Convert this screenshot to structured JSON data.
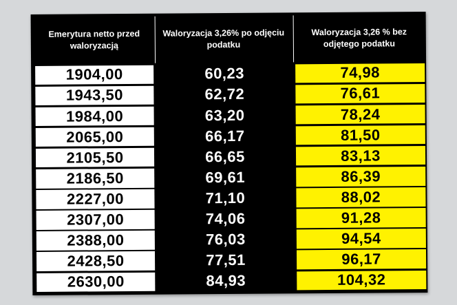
{
  "table": {
    "headers": [
      "Emerytura netto przed waloryzacją",
      "Waloryzacja 3,26% po odjęciu podatku",
      "Waloryzacja 3,26 % bez odjętego podatku"
    ],
    "rows": [
      [
        "1904,00",
        "60,23",
        "74,98"
      ],
      [
        "1943,50",
        "62,72",
        "76,61"
      ],
      [
        "1984,00",
        "63,20",
        "78,24"
      ],
      [
        "2065,00",
        "66,17",
        "81,50"
      ],
      [
        "2105,50",
        "66,65",
        "83,13"
      ],
      [
        "2186,50",
        "69,61",
        "86,39"
      ],
      [
        "2227,00",
        "71,10",
        "88,02"
      ],
      [
        "2307,00",
        "74,06",
        "91,28"
      ],
      [
        "2388,00",
        "76,03",
        "94,54"
      ],
      [
        "2428,50",
        "77,51",
        "96,17"
      ],
      [
        "2630,00",
        "84,93",
        "104,32"
      ]
    ]
  }
}
